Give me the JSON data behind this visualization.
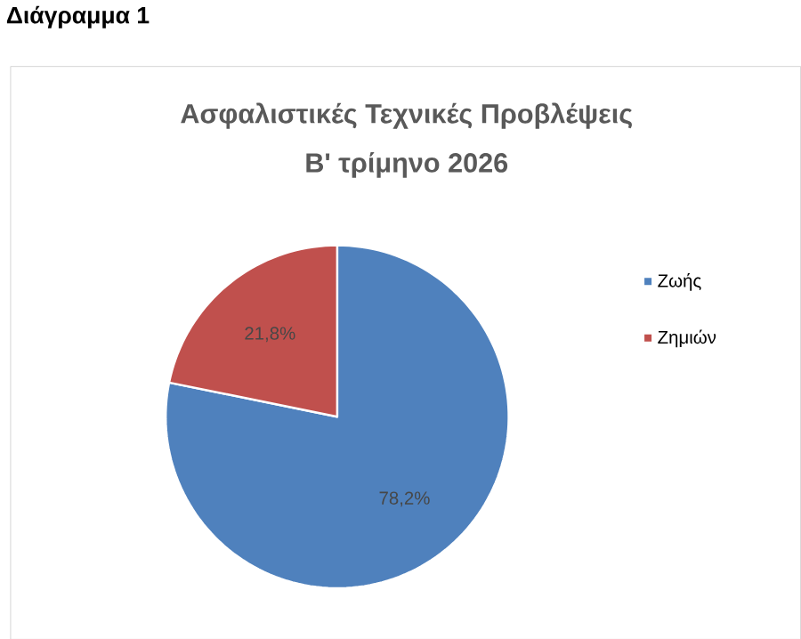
{
  "chart_data": {
    "type": "pie",
    "title": "Ασφαλιστικές Τεχνικές Προβλέψεις",
    "subtitle": "Β' τρίμηνο 2026",
    "annotations": [
      "Διάγραμμα 1"
    ],
    "categories": [
      "Ζωής",
      "Ζημιών"
    ],
    "values": [
      78.2,
      21.8
    ],
    "colors": [
      "#4f81bd",
      "#c0504d"
    ],
    "value_labels": [
      "78,2%",
      "21,8%"
    ],
    "legend": "right"
  }
}
